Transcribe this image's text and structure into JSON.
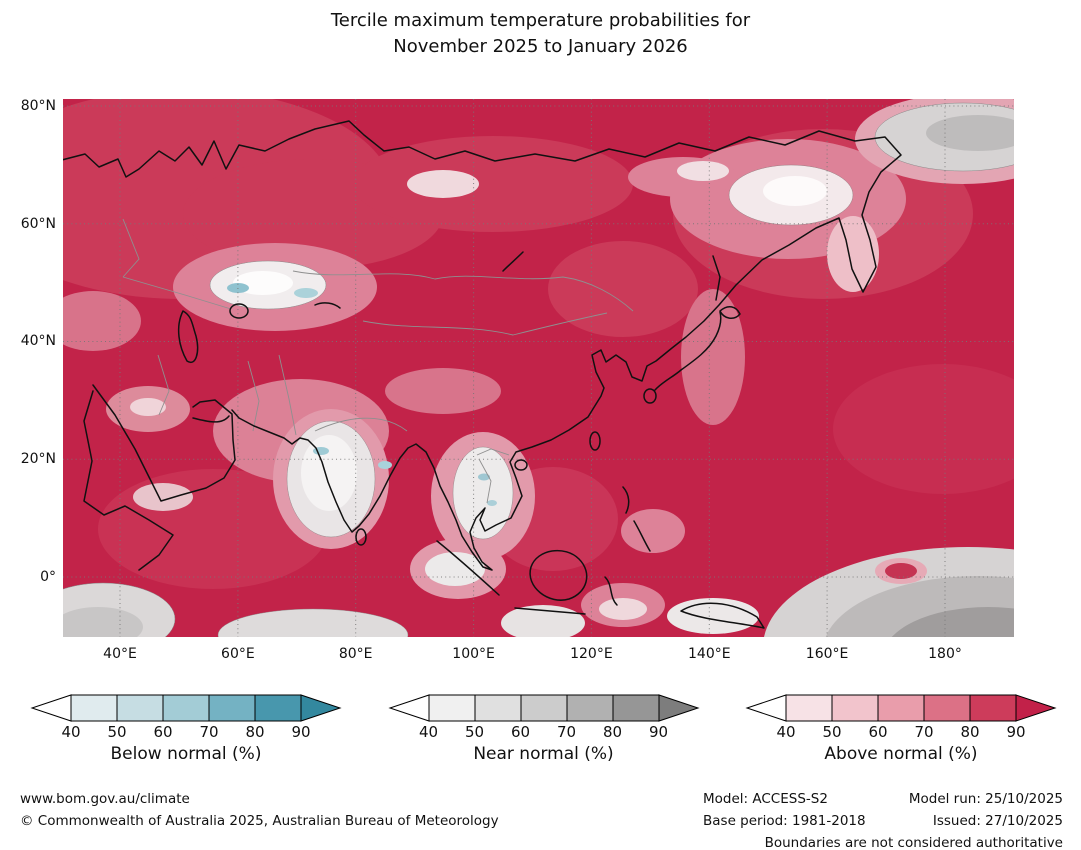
{
  "title": {
    "line1": "Tercile maximum temperature probabilities for",
    "line2": "November 2025 to January 2026"
  },
  "map": {
    "base_color": "#c22349",
    "coastline_color": "#111111",
    "border_color": "#8f8f8f",
    "y_axis_labels": [
      "80°N",
      "60°N",
      "40°N",
      "20°N",
      "0°"
    ],
    "x_axis_labels": [
      "40°E",
      "60°E",
      "80°E",
      "100°E",
      "120°E",
      "140°E",
      "160°E",
      "180°"
    ]
  },
  "legends": [
    {
      "label": "Below normal (%)",
      "ticks": [
        "40",
        "50",
        "60",
        "70",
        "80",
        "90"
      ],
      "cell_colors": [
        "#e0ebee",
        "#c6dde3",
        "#a3ccd6",
        "#74b2c3",
        "#4897ad"
      ],
      "arrow_left_color": "#ffffff",
      "arrow_right_color": "#33889f"
    },
    {
      "label": "Near normal (%)",
      "ticks": [
        "40",
        "50",
        "60",
        "70",
        "80",
        "90"
      ],
      "cell_colors": [
        "#f0f0f0",
        "#e0e0e0",
        "#cccccc",
        "#b1b1b1",
        "#969696"
      ],
      "arrow_left_color": "#ffffff",
      "arrow_right_color": "#7d7d7d"
    },
    {
      "label": "Above normal (%)",
      "ticks": [
        "40",
        "50",
        "60",
        "70",
        "80",
        "90"
      ],
      "cell_colors": [
        "#f7e2e6",
        "#f2c4cc",
        "#e99dab",
        "#dc7186",
        "#cd3c5b"
      ],
      "arrow_left_color": "#ffffff",
      "arrow_right_color": "#c22149"
    }
  ],
  "footer": {
    "website": "www.bom.gov.au/climate",
    "copyright": "© Commonwealth of Australia 2025, Australian Bureau of Meteorology",
    "model": "Model: ACCESS-S2",
    "base_period": "Base period: 1981-2018",
    "model_run": "Model run: 25/10/2025",
    "issued": "Issued: 27/10/2025",
    "disclaimer": "Boundaries are not considered authoritative"
  }
}
